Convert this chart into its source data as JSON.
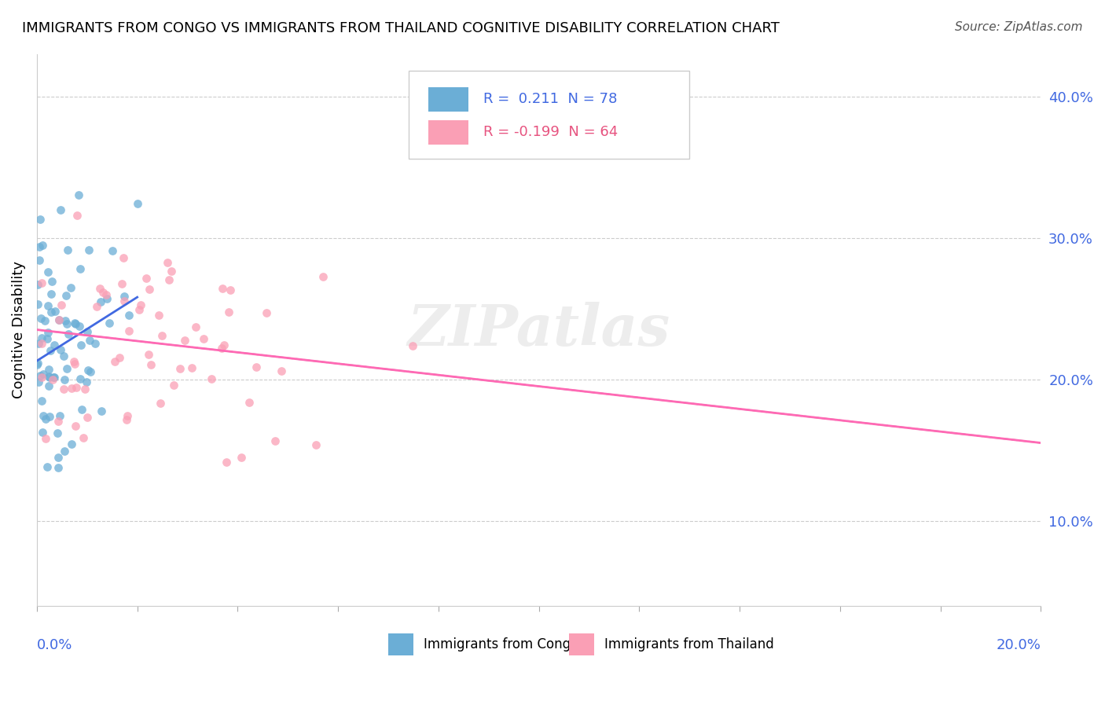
{
  "title": "IMMIGRANTS FROM CONGO VS IMMIGRANTS FROM THAILAND COGNITIVE DISABILITY CORRELATION CHART",
  "source": "Source: ZipAtlas.com",
  "ylabel": "Cognitive Disability",
  "ylabel_right_vals": [
    0.1,
    0.2,
    0.3,
    0.4
  ],
  "xlim": [
    0.0,
    0.2
  ],
  "ylim": [
    0.04,
    0.43
  ],
  "legend_congo_R": "0.211",
  "legend_congo_N": "78",
  "legend_thailand_R": "-0.199",
  "legend_thailand_N": "64",
  "congo_color": "#6baed6",
  "thailand_color": "#fa9fb5",
  "trendline_congo_color": "#4169E1",
  "trendline_thailand_color": "#FF69B4",
  "trendline_dashed_color": "#aaaaaa",
  "watermark": "ZIPatlas"
}
